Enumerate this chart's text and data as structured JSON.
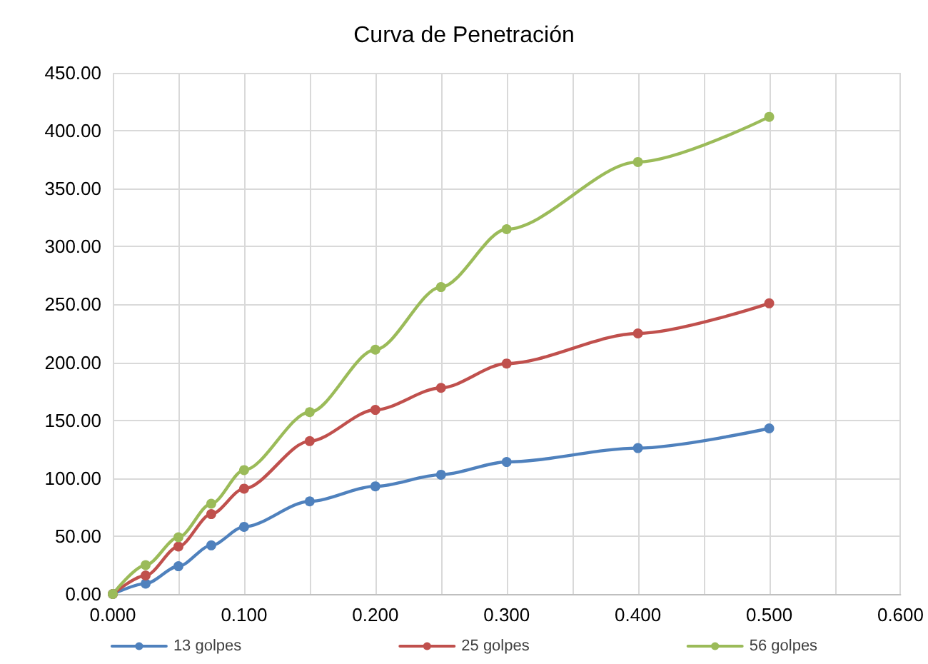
{
  "chart_data": {
    "type": "line",
    "title": "Curva de Penetración",
    "x": [
      0,
      0.025,
      0.05,
      0.075,
      0.1,
      0.15,
      0.2,
      0.25,
      0.3,
      0.4,
      0.5
    ],
    "series": [
      {
        "name": "13 golpes",
        "color": "#4f81bd",
        "values": [
          0,
          9,
          24,
          42,
          58,
          80,
          93,
          103,
          114,
          126,
          143
        ]
      },
      {
        "name": "25 golpes",
        "color": "#c0504d",
        "values": [
          0,
          16,
          41,
          69,
          91,
          132,
          159,
          178,
          199,
          225,
          251
        ]
      },
      {
        "name": "56 golpes",
        "color": "#9bbb59",
        "values": [
          0,
          25,
          49,
          78,
          107,
          157,
          211,
          265,
          315,
          373,
          412
        ]
      }
    ],
    "xlim": [
      0,
      0.6
    ],
    "xticks": [
      {
        "value": 0,
        "label": "0.000"
      },
      {
        "value": 0.05,
        "label": null
      },
      {
        "value": 0.1,
        "label": "0.100"
      },
      {
        "value": 0.15,
        "label": null
      },
      {
        "value": 0.2,
        "label": "0.200"
      },
      {
        "value": 0.25,
        "label": null
      },
      {
        "value": 0.3,
        "label": "0.300"
      },
      {
        "value": 0.35,
        "label": null
      },
      {
        "value": 0.4,
        "label": "0.400"
      },
      {
        "value": 0.45,
        "label": null
      },
      {
        "value": 0.5,
        "label": "0.500"
      },
      {
        "value": 0.55,
        "label": null
      },
      {
        "value": 0.6,
        "label": "0.600"
      }
    ],
    "ylim": [
      0,
      450
    ],
    "yticks": [
      {
        "value": 0,
        "label": "0.00"
      },
      {
        "value": 50,
        "label": "50.00"
      },
      {
        "value": 100,
        "label": "100.00"
      },
      {
        "value": 150,
        "label": "150.00"
      },
      {
        "value": 200,
        "label": "200.00"
      },
      {
        "value": 250,
        "label": "250.00"
      },
      {
        "value": 300,
        "label": "300.00"
      },
      {
        "value": 350,
        "label": "350.00"
      },
      {
        "value": 400,
        "label": "400.00"
      },
      {
        "value": 450,
        "label": "450.00"
      }
    ],
    "grid": true,
    "legend": "bottom",
    "marker": "circle",
    "line_style": "solid"
  }
}
